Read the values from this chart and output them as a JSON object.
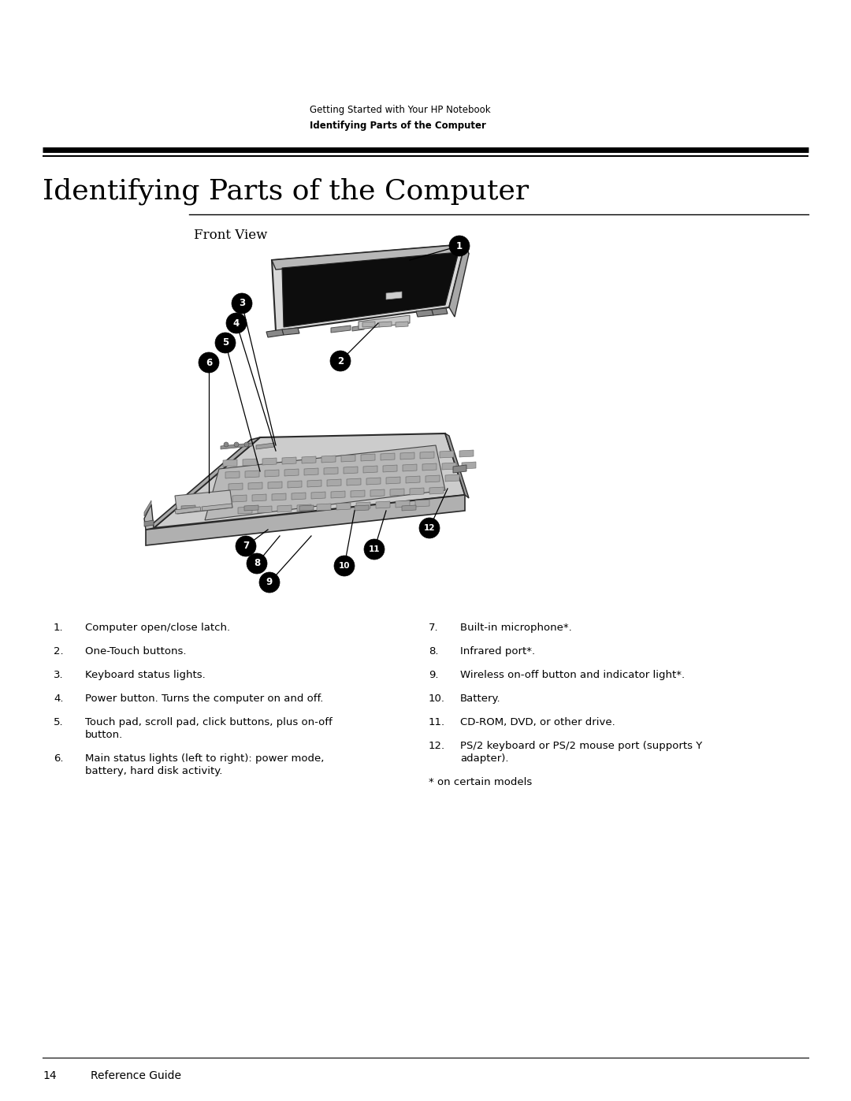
{
  "bg_color": "#ffffff",
  "header_line1": "Getting Started with Your HP Notebook",
  "header_line2": "Identifying Parts of the Computer",
  "section_title": "Identifying Parts of the Computer",
  "subsection_title": "Front View",
  "footer_page": "14",
  "footer_text": "Reference Guide",
  "left_items": [
    [
      "1.",
      "Computer open/close latch."
    ],
    [
      "2.",
      "One-Touch buttons."
    ],
    [
      "3.",
      "Keyboard status lights."
    ],
    [
      "4.",
      "Power button. Turns the computer on and off."
    ],
    [
      "5.",
      "Touch pad, scroll pad, click buttons, plus on-off",
      "button."
    ],
    [
      "6.",
      "Main status lights (left to right): power mode,",
      "battery, hard disk activity."
    ]
  ],
  "right_items": [
    [
      "7.",
      "Built-in microphone*."
    ],
    [
      "8.",
      "Infrared port*."
    ],
    [
      "9.",
      "Wireless on-off button and indicator light*."
    ],
    [
      "10.",
      "Battery."
    ],
    [
      "11.",
      "CD-ROM, DVD, or other drive."
    ],
    [
      "12.",
      "PS/2 keyboard or PS/2 mouse port (supports Y",
      "adapter)."
    ],
    [
      "*",
      "on certain models"
    ]
  ]
}
